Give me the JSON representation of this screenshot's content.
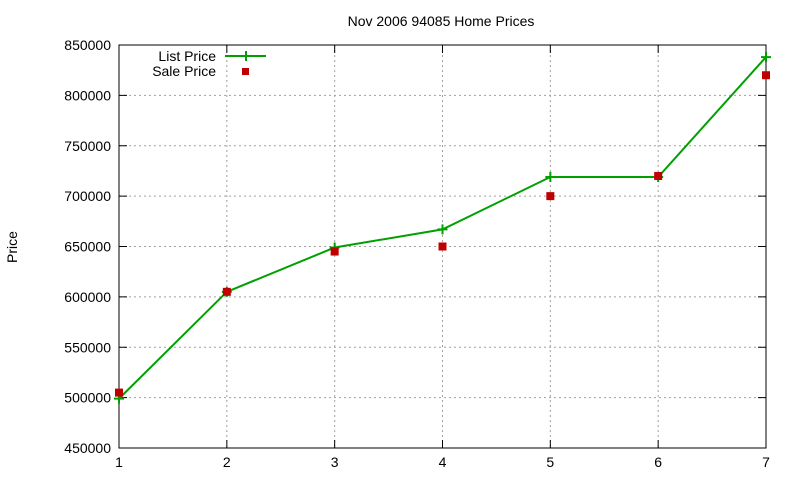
{
  "chart_data": {
    "type": "line",
    "title": "Nov 2006 94085 Home Prices",
    "xlabel": "",
    "ylabel": "Price",
    "x": [
      1,
      2,
      3,
      4,
      5,
      6,
      7
    ],
    "xlim": [
      1,
      7
    ],
    "ylim": [
      450000,
      850000
    ],
    "xticks": [
      "1",
      "2",
      "3",
      "4",
      "5",
      "6",
      "7"
    ],
    "yticks": [
      "450000",
      "500000",
      "550000",
      "600000",
      "650000",
      "700000",
      "750000",
      "800000",
      "850000"
    ],
    "grid": true,
    "legend_position": "top-left",
    "series": [
      {
        "name": "List Price",
        "style": "line+plus",
        "color": "#00a000",
        "values": [
          499000,
          605000,
          649000,
          667000,
          719000,
          719000,
          838000
        ]
      },
      {
        "name": "Sale Price",
        "style": "square-marker",
        "color": "#c00000",
        "values": [
          505000,
          605000,
          645000,
          650000,
          700000,
          720000,
          820000
        ]
      }
    ]
  }
}
